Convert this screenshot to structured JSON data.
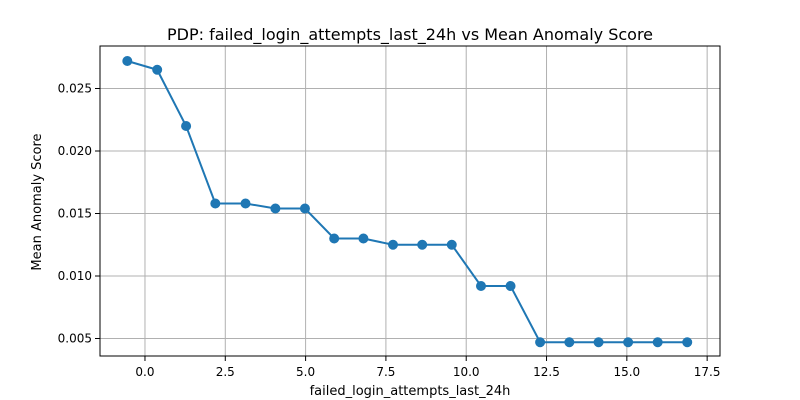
{
  "chart_data": {
    "type": "line",
    "title": "PDP: failed_login_attempts_last_24h vs Mean Anomaly Score",
    "xlabel": "failed_login_attempts_last_24h",
    "ylabel": "Mean Anomaly Score",
    "xlim": [
      -1.4,
      17.9
    ],
    "ylim": [
      0.0036,
      0.0284
    ],
    "xticks": [
      0.0,
      2.5,
      5.0,
      7.5,
      10.0,
      12.5,
      15.0,
      17.5
    ],
    "xtick_labels": [
      "0.0",
      "2.5",
      "5.0",
      "7.5",
      "10.0",
      "12.5",
      "15.0",
      "17.5"
    ],
    "yticks": [
      0.005,
      0.01,
      0.015,
      0.02,
      0.025
    ],
    "ytick_labels": [
      "0.005",
      "0.010",
      "0.015",
      "0.020",
      "0.025"
    ],
    "grid": true,
    "legend": "none",
    "series": [
      {
        "color": "#1f77b4",
        "marker": "circle",
        "x": [
          -0.55,
          0.38,
          1.28,
          2.19,
          3.13,
          4.06,
          4.98,
          5.89,
          6.8,
          7.72,
          8.63,
          9.55,
          10.46,
          11.38,
          12.3,
          13.21,
          14.12,
          15.04,
          15.96,
          16.88
        ],
        "y": [
          0.0272,
          0.0265,
          0.022,
          0.0158,
          0.0158,
          0.0154,
          0.0154,
          0.013,
          0.013,
          0.0125,
          0.0125,
          0.0125,
          0.0092,
          0.0092,
          0.0047,
          0.0047,
          0.0047,
          0.0047,
          0.0047,
          0.0047
        ]
      }
    ]
  }
}
